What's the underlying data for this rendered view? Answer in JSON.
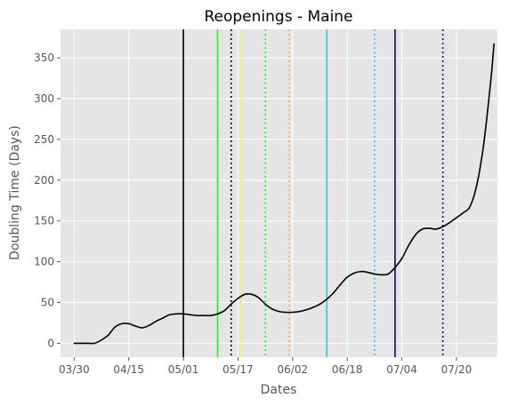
{
  "chart_data": {
    "type": "line",
    "title": "Reopenings - Maine",
    "xlabel": "Dates",
    "ylabel": "Doubling Time (Days)",
    "xlim": [
      "2020-03-26",
      "2020-08-01"
    ],
    "ylim": [
      -17,
      385
    ],
    "grid": true,
    "x_ticks": [
      {
        "date": "2020-03-30",
        "label": "03/30"
      },
      {
        "date": "2020-04-15",
        "label": "04/15"
      },
      {
        "date": "2020-05-01",
        "label": "05/01"
      },
      {
        "date": "2020-05-17",
        "label": "05/17"
      },
      {
        "date": "2020-06-02",
        "label": "06/02"
      },
      {
        "date": "2020-06-18",
        "label": "06/18"
      },
      {
        "date": "2020-07-04",
        "label": "07/04"
      },
      {
        "date": "2020-07-20",
        "label": "07/20"
      }
    ],
    "y_ticks": [
      0,
      50,
      100,
      150,
      200,
      250,
      300,
      350
    ],
    "series": [
      {
        "color": "#000000",
        "points": [
          [
            "2020-03-30",
            0
          ],
          [
            "2020-04-03",
            0
          ],
          [
            "2020-04-05",
            0
          ],
          [
            "2020-04-07",
            4
          ],
          [
            "2020-04-09",
            10
          ],
          [
            "2020-04-11",
            20
          ],
          [
            "2020-04-13",
            24
          ],
          [
            "2020-04-15",
            24
          ],
          [
            "2020-04-17",
            21
          ],
          [
            "2020-04-19",
            19
          ],
          [
            "2020-04-21",
            22
          ],
          [
            "2020-04-23",
            27
          ],
          [
            "2020-04-25",
            31
          ],
          [
            "2020-04-27",
            35
          ],
          [
            "2020-04-29",
            36
          ],
          [
            "2020-05-01",
            36
          ],
          [
            "2020-05-03",
            35
          ],
          [
            "2020-05-05",
            34
          ],
          [
            "2020-05-07",
            34
          ],
          [
            "2020-05-09",
            34
          ],
          [
            "2020-05-11",
            36
          ],
          [
            "2020-05-13",
            40
          ],
          [
            "2020-05-15",
            48
          ],
          [
            "2020-05-17",
            55
          ],
          [
            "2020-05-19",
            60
          ],
          [
            "2020-05-21",
            60
          ],
          [
            "2020-05-23",
            56
          ],
          [
            "2020-05-25",
            48
          ],
          [
            "2020-05-27",
            42
          ],
          [
            "2020-05-29",
            39
          ],
          [
            "2020-05-31",
            38
          ],
          [
            "2020-06-02",
            38
          ],
          [
            "2020-06-04",
            39
          ],
          [
            "2020-06-06",
            41
          ],
          [
            "2020-06-08",
            44
          ],
          [
            "2020-06-10",
            48
          ],
          [
            "2020-06-12",
            54
          ],
          [
            "2020-06-14",
            62
          ],
          [
            "2020-06-16",
            72
          ],
          [
            "2020-06-18",
            81
          ],
          [
            "2020-06-20",
            86
          ],
          [
            "2020-06-22",
            88
          ],
          [
            "2020-06-24",
            87
          ],
          [
            "2020-06-26",
            85
          ],
          [
            "2020-06-28",
            84
          ],
          [
            "2020-06-30",
            85
          ],
          [
            "2020-07-02",
            93
          ],
          [
            "2020-07-04",
            104
          ],
          [
            "2020-07-06",
            120
          ],
          [
            "2020-07-08",
            133
          ],
          [
            "2020-07-10",
            140
          ],
          [
            "2020-07-12",
            141
          ],
          [
            "2020-07-14",
            140
          ],
          [
            "2020-07-16",
            143
          ],
          [
            "2020-07-18",
            148
          ],
          [
            "2020-07-20",
            154
          ],
          [
            "2020-07-22",
            160
          ],
          [
            "2020-07-24",
            168
          ],
          [
            "2020-07-26",
            195
          ],
          [
            "2020-07-28",
            245
          ],
          [
            "2020-07-30",
            320
          ],
          [
            "2020-07-31",
            367
          ]
        ]
      }
    ],
    "vertical_lines": [
      {
        "date": "2020-05-01",
        "color": "#000000",
        "style": "solid"
      },
      {
        "date": "2020-05-11",
        "color": "#33ee33",
        "style": "solid"
      },
      {
        "date": "2020-05-15",
        "color": "#000000",
        "style": "dotted"
      },
      {
        "date": "2020-05-18",
        "color": "#ffee44",
        "style": "solid"
      },
      {
        "date": "2020-05-25",
        "color": "#33ee33",
        "style": "dotted"
      },
      {
        "date": "2020-06-01",
        "color": "#ffaa66",
        "style": "dotted"
      },
      {
        "date": "2020-06-12",
        "color": "#22ccee",
        "style": "solid"
      },
      {
        "date": "2020-06-15",
        "color": "#ffccee",
        "style": "dotted"
      },
      {
        "date": "2020-06-26",
        "color": "#22ccee",
        "style": "dotted"
      },
      {
        "date": "2020-07-02",
        "color": "#0000aa",
        "style": "solid"
      },
      {
        "date": "2020-07-16",
        "color": "#0000ee",
        "style": "dotted"
      }
    ]
  }
}
